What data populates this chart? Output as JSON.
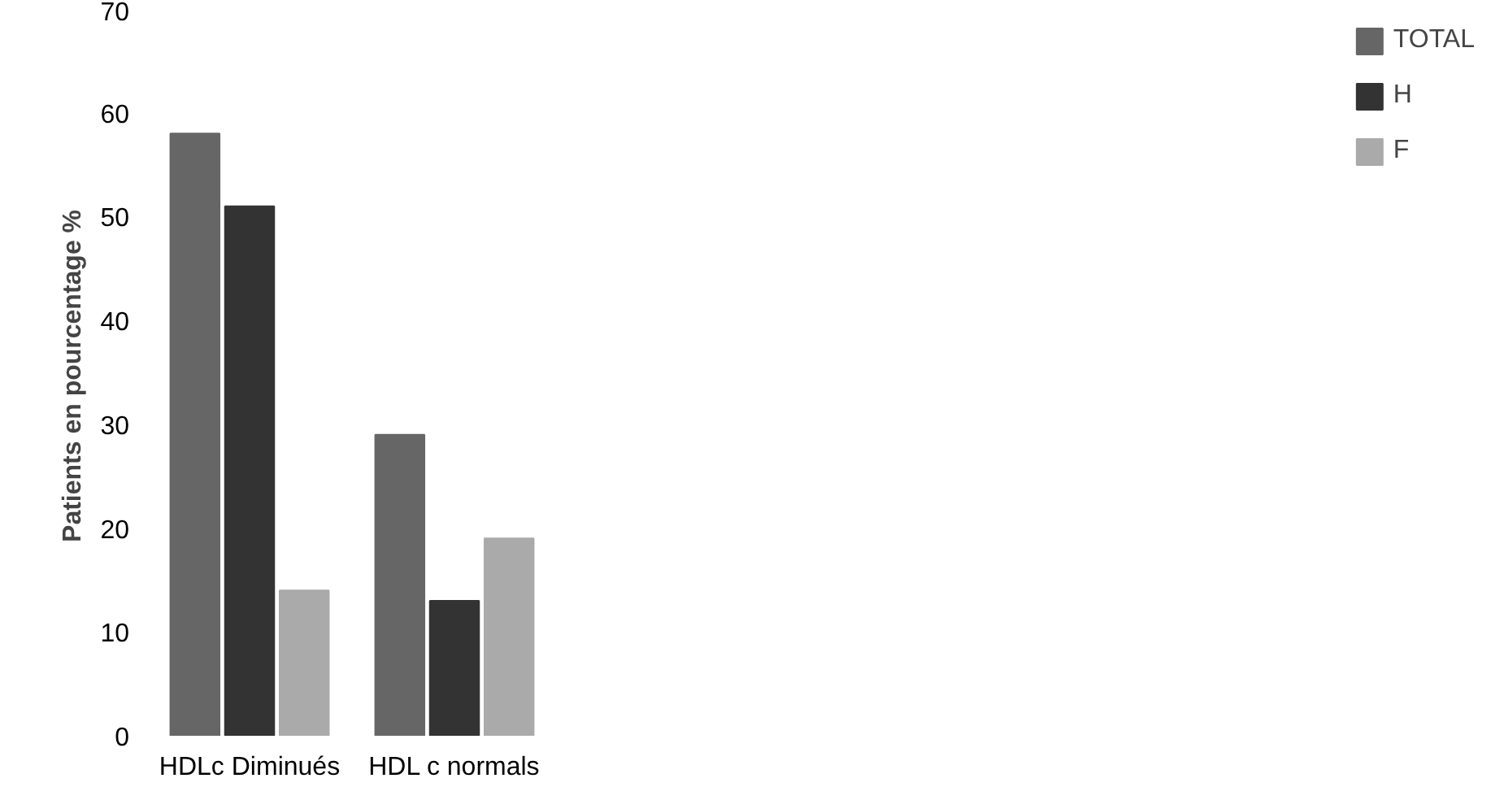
{
  "chart_data": {
    "type": "bar",
    "ylabel": "Patients en  pourcentage %",
    "categories": [
      "HDLc Diminués",
      "HDL c normals"
    ],
    "series": [
      {
        "name": "TOTAL",
        "color": "#666666",
        "values": [
          58,
          29
        ]
      },
      {
        "name": "H",
        "color": "#333333",
        "values": [
          51,
          13
        ]
      },
      {
        "name": "F",
        "color": "#aaaaaa",
        "values": [
          14,
          19
        ]
      }
    ],
    "ylim": [
      0,
      70
    ],
    "yticks": [
      0,
      10,
      20,
      30,
      40,
      50,
      60,
      70
    ],
    "grid": false,
    "legend": "right"
  }
}
